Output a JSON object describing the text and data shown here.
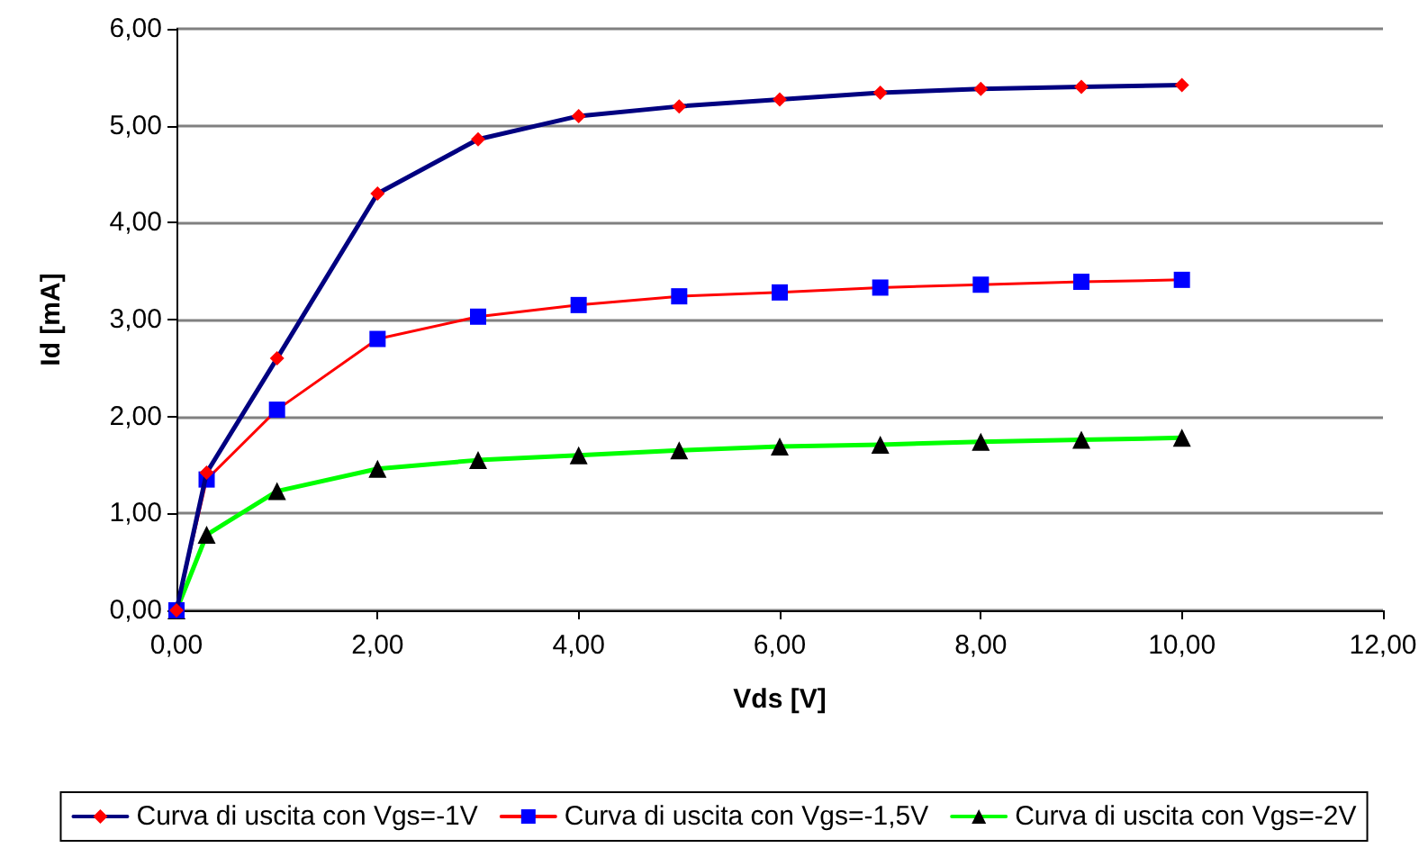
{
  "chart_data": {
    "type": "line",
    "xlabel": "Vds [V]",
    "ylabel": "Id [mA]",
    "x": [
      0,
      0.3,
      1,
      2,
      3,
      4,
      5,
      6,
      7,
      8,
      9,
      10
    ],
    "series": [
      {
        "name": "Curva di uscita con Vgs=-1V",
        "color": "#000080",
        "marker": "diamond",
        "colors": [
          "#ff0000",
          "#ff0000",
          "#ff0000",
          "#ff0000",
          "#ff0000",
          "#ff0000",
          "#ff0000",
          "#ff0000",
          "#ff0000",
          "#ff0000",
          "#ff0000",
          "#ff0000"
        ],
        "values": [
          0,
          1.42,
          2.6,
          4.3,
          4.86,
          5.1,
          5.2,
          5.27,
          5.34,
          5.38,
          5.4,
          5.42
        ]
      },
      {
        "name": "Curva di uscita con Vgs=-1,5V",
        "color": "#ff0000",
        "marker": "square",
        "colors": [
          "#0000ff",
          "#0000ff",
          "#0000ff",
          "#0000ff",
          "#0000ff",
          "#0000ff",
          "#0000ff",
          "#0000ff",
          "#0000ff",
          "#0000ff",
          "#0000ff",
          "#0000ff"
        ],
        "values": [
          0,
          1.35,
          2.07,
          2.8,
          3.03,
          3.15,
          3.24,
          3.28,
          3.33,
          3.36,
          3.39,
          3.41
        ]
      },
      {
        "name": "Curva di uscita con Vgs=-2V",
        "color": "#00ff00",
        "marker": "triangle",
        "colors": [
          "#000000",
          "#000000",
          "#000000",
          "#000000",
          "#000000",
          "#000000",
          "#000000",
          "#000000",
          "#000000",
          "#000000",
          "#000000",
          "#000000"
        ],
        "values": [
          0,
          0.78,
          1.23,
          1.46,
          1.55,
          1.6,
          1.65,
          1.69,
          1.71,
          1.74,
          1.76,
          1.78
        ]
      }
    ],
    "xlim": [
      0,
      12
    ],
    "xticks": [
      {
        "value": 0,
        "label": "0,00"
      },
      {
        "value": 2,
        "label": "2,00"
      },
      {
        "value": 4,
        "label": "4,00"
      },
      {
        "value": 6,
        "label": "6,00"
      },
      {
        "value": 8,
        "label": "8,00"
      },
      {
        "value": 10,
        "label": "10,00"
      },
      {
        "value": 12,
        "label": "12,00"
      }
    ],
    "ylim": [
      0,
      6
    ],
    "yticks": [
      {
        "value": 0,
        "label": "0,00"
      },
      {
        "value": 1,
        "label": "1,00"
      },
      {
        "value": 2,
        "label": "2,00"
      },
      {
        "value": 3,
        "label": "3,00"
      },
      {
        "value": 4,
        "label": "4,00"
      },
      {
        "value": 5,
        "label": "5,00"
      },
      {
        "value": 6,
        "label": "6,00"
      }
    ],
    "grid": "y",
    "legend": "bottom",
    "line_style": "solid"
  }
}
